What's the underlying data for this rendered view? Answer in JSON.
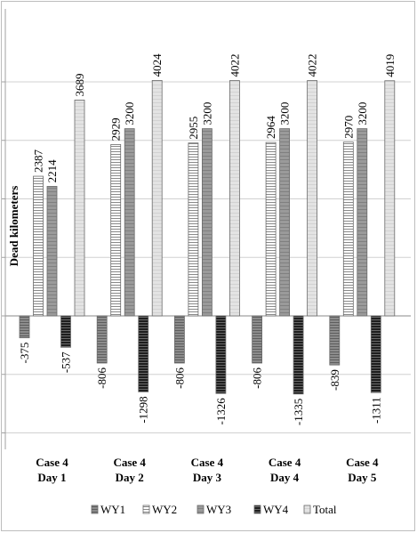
{
  "chart_data": {
    "type": "bar",
    "title": "",
    "xlabel": "",
    "ylabel": "Dead kilometers",
    "ylim": [
      -2000,
      4800
    ],
    "grid": true,
    "legend_position": "bottom",
    "categories": [
      [
        "Case 4",
        "Day 1"
      ],
      [
        "Case 4",
        "Day 2"
      ],
      [
        "Case 4",
        "Day 3"
      ],
      [
        "Case 4",
        "Day 4"
      ],
      [
        "Case 4",
        "Day 5"
      ]
    ],
    "series": [
      {
        "name": "WY1",
        "values": [
          -375,
          -806,
          -806,
          -806,
          -839
        ],
        "labels": [
          "-375",
          "-806",
          "-806",
          "-806",
          "-839"
        ]
      },
      {
        "name": "WY2",
        "values": [
          2387,
          2929,
          2955,
          2964,
          2970
        ],
        "labels": [
          "2387",
          "2929",
          "2955",
          "2964",
          "2970"
        ]
      },
      {
        "name": "WY3",
        "values": [
          2214,
          3200,
          3200,
          3200,
          3200
        ],
        "labels": [
          "2214",
          "3200",
          "3200",
          "3200",
          "3200"
        ]
      },
      {
        "name": "WY4",
        "values": [
          -537,
          -1298,
          -1326,
          -1335,
          -1311
        ],
        "labels": [
          "-537",
          "-1298",
          "-1326",
          "-1335",
          "-1311"
        ]
      },
      {
        "name": "Total",
        "values": [
          3689,
          4024,
          4022,
          4022,
          4019
        ],
        "labels": [
          "3689",
          "4024",
          "4022",
          "4022",
          "4019"
        ]
      }
    ]
  }
}
